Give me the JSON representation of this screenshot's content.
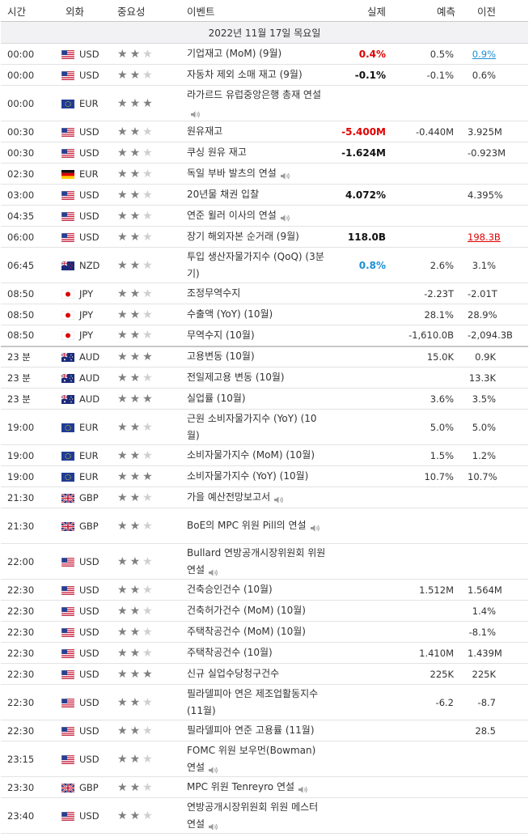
{
  "headers": {
    "time": "시간",
    "currency": "외화",
    "importance": "중요성",
    "event": "이벤트",
    "actual": "실제",
    "forecast": "예측",
    "previous": "이전"
  },
  "date_label": "2022년 11월 17일 목요일",
  "colors": {
    "positive": "#1a8fd6",
    "negative": "#e00000",
    "star_on": "#808080",
    "star_off": "#cfcfcf"
  },
  "rows": [
    {
      "time": "00:00",
      "flag": "us",
      "cur": "USD",
      "stars": 2,
      "event": "기업재고 (MoM) (9월)",
      "speech": false,
      "actual": "0.4%",
      "actual_color": "red",
      "forecast": "0.5%",
      "previous": "0.9%",
      "prev_style": "link-blue",
      "h": 26
    },
    {
      "time": "00:00",
      "flag": "us",
      "cur": "USD",
      "stars": 2,
      "event": "자동차 제외 소매 재고 (9월)",
      "speech": false,
      "actual": "-0.1%",
      "actual_color": "black",
      "forecast": "-0.1%",
      "previous": "0.6%",
      "prev_style": "",
      "h": 26
    },
    {
      "time": "00:00",
      "flag": "eu",
      "cur": "EUR",
      "stars": 3,
      "event": "라가르드 유럽중앙은행 총재 연설",
      "speech": true,
      "actual": "",
      "actual_color": "",
      "forecast": "",
      "previous": "",
      "prev_style": "",
      "h": 44
    },
    {
      "time": "00:30",
      "flag": "us",
      "cur": "USD",
      "stars": 2,
      "event": "원유재고",
      "speech": false,
      "actual": "-5.400M",
      "actual_color": "red",
      "forecast": "-0.440M",
      "previous": "3.925M",
      "prev_style": "",
      "h": 26
    },
    {
      "time": "00:30",
      "flag": "us",
      "cur": "USD",
      "stars": 2,
      "event": "쿠싱 원유 재고",
      "speech": false,
      "actual": "-1.624M",
      "actual_color": "black",
      "forecast": "",
      "previous": "-0.923M",
      "prev_style": "",
      "h": 26
    },
    {
      "time": "02:30",
      "flag": "de",
      "cur": "EUR",
      "stars": 2,
      "event": "독일 부바 발츠의 연설",
      "speech": true,
      "actual": "",
      "actual_color": "",
      "forecast": "",
      "previous": "",
      "prev_style": "",
      "h": 26
    },
    {
      "time": "03:00",
      "flag": "us",
      "cur": "USD",
      "stars": 2,
      "event": "20년물 채권 입찰",
      "speech": false,
      "actual": "4.072%",
      "actual_color": "black",
      "forecast": "",
      "previous": "4.395%",
      "prev_style": "",
      "h": 26
    },
    {
      "time": "04:35",
      "flag": "us",
      "cur": "USD",
      "stars": 2,
      "event": "연준 윌러 이사의 연설",
      "speech": true,
      "actual": "",
      "actual_color": "",
      "forecast": "",
      "previous": "",
      "prev_style": "",
      "h": 26
    },
    {
      "time": "06:00",
      "flag": "us",
      "cur": "USD",
      "stars": 2,
      "event": "장기 해외자본 순거래 (9월)",
      "speech": false,
      "actual": "118.0B",
      "actual_color": "black",
      "forecast": "",
      "previous": "198.3B",
      "prev_style": "link-red",
      "h": 26
    },
    {
      "time": "06:45",
      "flag": "nz",
      "cur": "NZD",
      "stars": 2,
      "event": "투입 생산자물가지수 (QoQ) (3분기)",
      "speech": false,
      "actual": "0.8%",
      "actual_color": "blue",
      "forecast": "2.6%",
      "previous": "3.1%",
      "prev_style": "",
      "h": 44
    },
    {
      "time": "08:50",
      "flag": "jp",
      "cur": "JPY",
      "stars": 2,
      "event": "조정무역수지",
      "speech": false,
      "actual": "",
      "actual_color": "",
      "forecast": "-2.23T",
      "previous": "-2.01T",
      "prev_style": "",
      "h": 26
    },
    {
      "time": "08:50",
      "flag": "jp",
      "cur": "JPY",
      "stars": 2,
      "event": "수출액 (YoY) (10월)",
      "speech": false,
      "actual": "",
      "actual_color": "",
      "forecast": "28.1%",
      "previous": "28.9%",
      "prev_style": "",
      "h": 26
    },
    {
      "time": "08:50",
      "flag": "jp",
      "cur": "JPY",
      "stars": 2,
      "event": "무역수지 (10월)",
      "speech": false,
      "actual": "",
      "actual_color": "",
      "forecast": "-1,610.0B",
      "previous": "-2,094.3B",
      "prev_style": "",
      "h": 26
    },
    {
      "time": "23 분",
      "flag": "au",
      "cur": "AUD",
      "stars": 3,
      "event": "고용변동 (10월)",
      "speech": false,
      "actual": "",
      "actual_color": "",
      "forecast": "15.0K",
      "previous": "0.9K",
      "prev_style": "",
      "h": 26,
      "sep": true
    },
    {
      "time": "23 분",
      "flag": "au",
      "cur": "AUD",
      "stars": 2,
      "event": "전일제고용 변동 (10월)",
      "speech": false,
      "actual": "",
      "actual_color": "",
      "forecast": "",
      "previous": "13.3K",
      "prev_style": "",
      "h": 26
    },
    {
      "time": "23 분",
      "flag": "au",
      "cur": "AUD",
      "stars": 3,
      "event": "실업률 (10월)",
      "speech": false,
      "actual": "",
      "actual_color": "",
      "forecast": "3.6%",
      "previous": "3.5%",
      "prev_style": "",
      "h": 26
    },
    {
      "time": "19:00",
      "flag": "eu",
      "cur": "EUR",
      "stars": 2,
      "event": "근원 소비자물가지수 (YoY) (10월)",
      "speech": false,
      "actual": "",
      "actual_color": "",
      "forecast": "5.0%",
      "previous": "5.0%",
      "prev_style": "",
      "h": 44
    },
    {
      "time": "19:00",
      "flag": "eu",
      "cur": "EUR",
      "stars": 2,
      "event": "소비자물가지수 (MoM) (10월)",
      "speech": false,
      "actual": "",
      "actual_color": "",
      "forecast": "1.5%",
      "previous": "1.2%",
      "prev_style": "",
      "h": 26
    },
    {
      "time": "19:00",
      "flag": "eu",
      "cur": "EUR",
      "stars": 3,
      "event": "소비자물가지수 (YoY) (10월)",
      "speech": false,
      "actual": "",
      "actual_color": "",
      "forecast": "10.7%",
      "previous": "10.7%",
      "prev_style": "",
      "h": 26
    },
    {
      "time": "21:30",
      "flag": "gb",
      "cur": "GBP",
      "stars": 2,
      "event": "가을 예산전망보고서",
      "speech": true,
      "actual": "",
      "actual_color": "",
      "forecast": "",
      "previous": "",
      "prev_style": "",
      "h": 26
    },
    {
      "time": "21:30",
      "flag": "gb",
      "cur": "GBP",
      "stars": 2,
      "event": "BoE의 MPC 위원 Pill의 연설",
      "speech": true,
      "actual": "",
      "actual_color": "",
      "forecast": "",
      "previous": "",
      "prev_style": "",
      "h": 44
    },
    {
      "time": "22:00",
      "flag": "us",
      "cur": "USD",
      "stars": 2,
      "event": "Bullard 연방공개시장위원회 위원 연설",
      "speech": true,
      "actual": "",
      "actual_color": "",
      "forecast": "",
      "previous": "",
      "prev_style": "",
      "h": 44
    },
    {
      "time": "22:30",
      "flag": "us",
      "cur": "USD",
      "stars": 2,
      "event": "건축승인건수 (10월)",
      "speech": false,
      "actual": "",
      "actual_color": "",
      "forecast": "1.512M",
      "previous": "1.564M",
      "prev_style": "",
      "h": 26
    },
    {
      "time": "22:30",
      "flag": "us",
      "cur": "USD",
      "stars": 2,
      "event": "건축허가건수 (MoM) (10월)",
      "speech": false,
      "actual": "",
      "actual_color": "",
      "forecast": "",
      "previous": "1.4%",
      "prev_style": "",
      "h": 26
    },
    {
      "time": "22:30",
      "flag": "us",
      "cur": "USD",
      "stars": 2,
      "event": "주택착공건수 (MoM) (10월)",
      "speech": false,
      "actual": "",
      "actual_color": "",
      "forecast": "",
      "previous": "-8.1%",
      "prev_style": "",
      "h": 26
    },
    {
      "time": "22:30",
      "flag": "us",
      "cur": "USD",
      "stars": 2,
      "event": "주택착공건수 (10월)",
      "speech": false,
      "actual": "",
      "actual_color": "",
      "forecast": "1.410M",
      "previous": "1.439M",
      "prev_style": "",
      "h": 26
    },
    {
      "time": "22:30",
      "flag": "us",
      "cur": "USD",
      "stars": 3,
      "event": "신규 실업수당청구건수",
      "speech": false,
      "actual": "",
      "actual_color": "",
      "forecast": "225K",
      "previous": "225K",
      "prev_style": "",
      "h": 26
    },
    {
      "time": "22:30",
      "flag": "us",
      "cur": "USD",
      "stars": 2,
      "event": "필라델피아 연은 제조업활동지수 (11월)",
      "speech": false,
      "actual": "",
      "actual_color": "",
      "forecast": "-6.2",
      "previous": "-8.7",
      "prev_style": "",
      "h": 44
    },
    {
      "time": "22:30",
      "flag": "us",
      "cur": "USD",
      "stars": 2,
      "event": "필라델피아 연준 고용률 (11월)",
      "speech": false,
      "actual": "",
      "actual_color": "",
      "forecast": "",
      "previous": "28.5",
      "prev_style": "",
      "h": 26
    },
    {
      "time": "23:15",
      "flag": "us",
      "cur": "USD",
      "stars": 2,
      "event": "FOMC 위원 보우먼(Bowman) 연설",
      "speech": true,
      "actual": "",
      "actual_color": "",
      "forecast": "",
      "previous": "",
      "prev_style": "",
      "h": 44
    },
    {
      "time": "23:30",
      "flag": "gb",
      "cur": "GBP",
      "stars": 2,
      "event": "MPC 위원 Tenreyro 연설",
      "speech": true,
      "actual": "",
      "actual_color": "",
      "forecast": "",
      "previous": "",
      "prev_style": "",
      "h": 26
    },
    {
      "time": "23:40",
      "flag": "us",
      "cur": "USD",
      "stars": 2,
      "event": "연방공개시장위원회 위원 메스터 연설",
      "speech": true,
      "actual": "",
      "actual_color": "",
      "forecast": "",
      "previous": "",
      "prev_style": "",
      "h": 44
    }
  ]
}
